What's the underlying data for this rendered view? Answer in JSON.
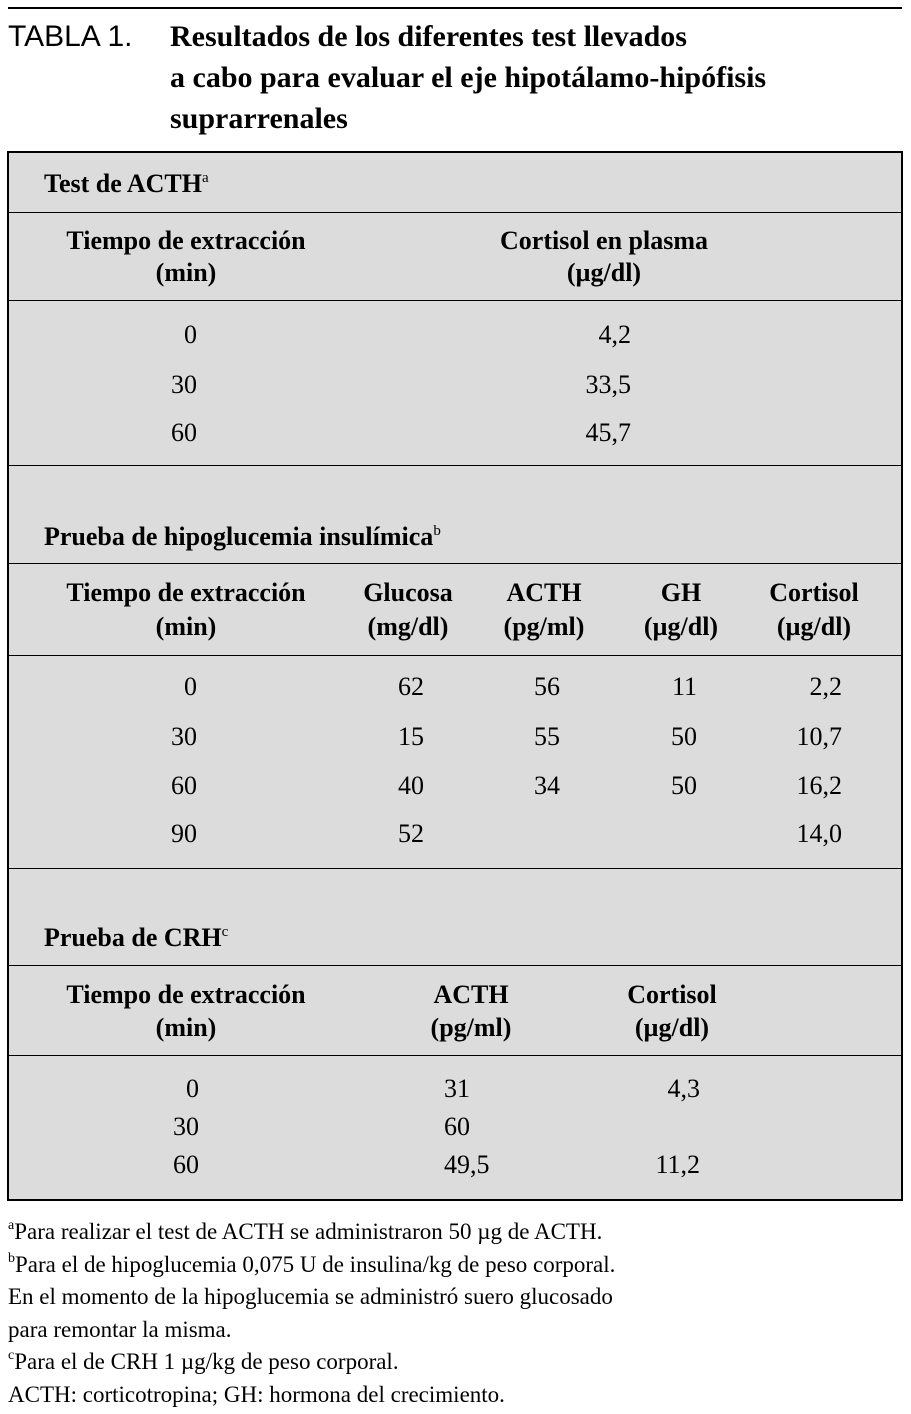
{
  "header": {
    "label": "TABLA 1.",
    "title_lines": [
      "Resultados de los diferentes test llevados",
      "a cabo para evaluar el eje hipotálamo-hipófisis",
      "suprarrenales"
    ]
  },
  "sections": [
    {
      "title": "Test de ACTH",
      "mark": "a",
      "columns": [
        {
          "name": "Tiempo de extracción",
          "unit": "(min)"
        },
        {
          "name": "Cortisol en plasma",
          "unit": "(µg/dl)"
        }
      ],
      "rows": [
        [
          "0",
          "4,2"
        ],
        [
          "30",
          "33,5"
        ],
        [
          "60",
          "45,7"
        ]
      ]
    },
    {
      "title": "Prueba de hipoglucemia insulímica",
      "mark": "b",
      "columns": [
        {
          "name": "Tiempo de extracción",
          "unit": "(min)"
        },
        {
          "name": "Glucosa",
          "unit": "(mg/dl)"
        },
        {
          "name": "ACTH",
          "unit": "(pg/ml)"
        },
        {
          "name": "GH",
          "unit": "(µg/dl)"
        },
        {
          "name": "Cortisol",
          "unit": "(µg/dl)"
        }
      ],
      "rows": [
        [
          "0",
          "62",
          "56",
          "11",
          "2,2"
        ],
        [
          "30",
          "15",
          "55",
          "50",
          "10,7"
        ],
        [
          "60",
          "40",
          "34",
          "50",
          "16,2"
        ],
        [
          "90",
          "52",
          null,
          null,
          "14,0"
        ]
      ]
    },
    {
      "title": "Prueba de CRH",
      "mark": "c",
      "columns": [
        {
          "name": "Tiempo de extracción",
          "unit": "(min)"
        },
        {
          "name": "ACTH",
          "unit": "(pg/ml)"
        },
        {
          "name": "Cortisol",
          "unit": "(µg/dl)"
        }
      ],
      "rows": [
        [
          "0",
          "31",
          "4,3"
        ],
        [
          "30",
          "60",
          null
        ],
        [
          "60",
          "49,5",
          "11,2"
        ]
      ]
    }
  ],
  "footnotes": [
    {
      "mark": "a",
      "text": "Para realizar el test de ACTH se administraron 50 µg de ACTH."
    },
    {
      "mark": "b",
      "text": "Para el de hipoglucemia 0,075 U de insulina/kg de peso corporal."
    },
    {
      "text": "En el momento de la hipoglucemia se administró suero glucosado"
    },
    {
      "text": "para remontar la misma."
    },
    {
      "mark": "c",
      "text": "Para el de CRH 1 µg/kg de peso corporal."
    },
    {
      "text": "ACTH: corticotropina; GH: hormona del crecimiento."
    }
  ]
}
